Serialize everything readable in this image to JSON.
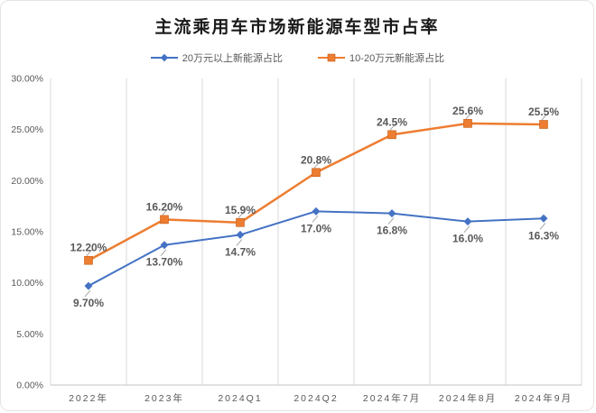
{
  "chart_data": {
    "type": "line",
    "title": "主流乘用车市场新能源车型市占率",
    "categories": [
      "2022年",
      "2023年",
      "2024Q1",
      "2024Q2",
      "2024年7月",
      "2024年8月",
      "2024年9月"
    ],
    "series": [
      {
        "name": "20万元以上新能源占比",
        "color": "#4472C4",
        "marker": "diamond",
        "line_width": 2,
        "label_side": "below",
        "values": [
          9.7,
          13.7,
          14.7,
          17.0,
          16.8,
          16.0,
          16.3
        ],
        "labels": [
          "9.70%",
          "13.70%",
          "14.7%",
          "17.0%",
          "16.8%",
          "16.0%",
          "16.3%"
        ]
      },
      {
        "name": "10-20万元新能源占比",
        "color": "#ED7D31",
        "marker": "square",
        "line_width": 2.5,
        "label_side": "above",
        "values": [
          12.2,
          16.2,
          15.9,
          20.8,
          24.5,
          25.6,
          25.5
        ],
        "labels": [
          "12.20%",
          "16.20%",
          "15.9%",
          "20.8%",
          "24.5%",
          "25.6%",
          "25.5%"
        ]
      }
    ],
    "xlabel": "",
    "ylabel": "",
    "ylim": [
      0,
      30
    ],
    "yticks": [
      {
        "value": 0,
        "label": "0.00%"
      },
      {
        "value": 5,
        "label": "5.00%"
      },
      {
        "value": 10,
        "label": "10.00%"
      },
      {
        "value": 15,
        "label": "15.00%"
      },
      {
        "value": 20,
        "label": "20.00%"
      },
      {
        "value": 25,
        "label": "25.00%"
      },
      {
        "value": 30,
        "label": "30.00%"
      }
    ],
    "grid": "vertical",
    "grid_color": "#D9D9D9",
    "axis_color": "#C6C6C6",
    "leader_color": "#A6A6A6",
    "legend_position": "top"
  }
}
